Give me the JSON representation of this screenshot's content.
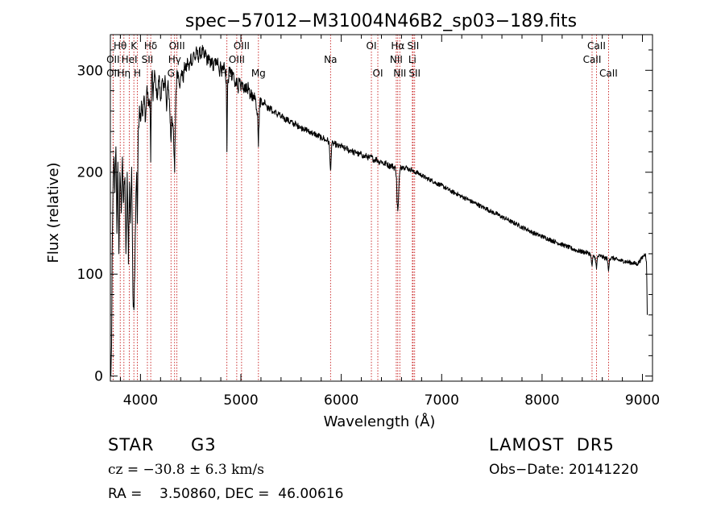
{
  "chart_data": {
    "type": "line",
    "title": "spec−57012−M31004N46B2_sp03−189.fits",
    "xlabel": "Wavelength (Å)",
    "ylabel": "Flux (relative)",
    "xlim": [
      3700,
      9100
    ],
    "ylim": [
      -5,
      335
    ],
    "xticks": [
      4000,
      5000,
      6000,
      7000,
      8000,
      9000
    ],
    "yticks": [
      0,
      100,
      200,
      300
    ],
    "grid": false,
    "line_color": "#000000",
    "marker_color": "#c00000",
    "lines": [
      {
        "label": "Hθ",
        "wave": 3798,
        "row": 0
      },
      {
        "label": "OII",
        "wave": 3727,
        "row": 1
      },
      {
        "label": "OII",
        "wave": 3727,
        "row": 2
      },
      {
        "label": "K",
        "wave": 3934,
        "row": 0
      },
      {
        "label": "HeI",
        "wave": 3889,
        "row": 1
      },
      {
        "label": "Hη",
        "wave": 3835,
        "row": 2
      },
      {
        "label": "Hδ",
        "wave": 4102,
        "row": 0
      },
      {
        "label": "SII",
        "wave": 4069,
        "row": 1
      },
      {
        "label": "H",
        "wave": 3969,
        "row": 2
      },
      {
        "label": "OIII",
        "wave": 4363,
        "row": 0
      },
      {
        "label": "Hγ",
        "wave": 4340,
        "row": 1
      },
      {
        "label": "G",
        "wave": 4304,
        "row": 2
      },
      {
        "label": "OIII",
        "wave": 5007,
        "row": 0
      },
      {
        "label": "OIII",
        "wave": 4959,
        "row": 1
      },
      {
        "label": "Hβ",
        "wave": 4861,
        "row": 2
      },
      {
        "label": "Mg",
        "wave": 5175,
        "row": 2
      },
      {
        "label": "Na",
        "wave": 5893,
        "row": 1
      },
      {
        "label": "OI",
        "wave": 6300,
        "row": 0
      },
      {
        "label": "OI",
        "wave": 6364,
        "row": 2
      },
      {
        "label": "Hα",
        "wave": 6563,
        "row": 0
      },
      {
        "label": "NII",
        "wave": 6548,
        "row": 1
      },
      {
        "label": "NII",
        "wave": 6583,
        "row": 2
      },
      {
        "label": "SII",
        "wave": 6716,
        "row": 0
      },
      {
        "label": "Li",
        "wave": 6708,
        "row": 1
      },
      {
        "label": "SII",
        "wave": 6731,
        "row": 2
      },
      {
        "label": "CaII",
        "wave": 8542,
        "row": 0
      },
      {
        "label": "CaII",
        "wave": 8498,
        "row": 1
      },
      {
        "label": "CaII",
        "wave": 8662,
        "row": 2
      }
    ],
    "spectrum": [
      [
        3705,
        0
      ],
      [
        3712,
        30
      ],
      [
        3718,
        120
      ],
      [
        3725,
        170
      ],
      [
        3735,
        215
      ],
      [
        3745,
        180
      ],
      [
        3755,
        225
      ],
      [
        3765,
        140
      ],
      [
        3775,
        210
      ],
      [
        3785,
        120
      ],
      [
        3795,
        200
      ],
      [
        3808,
        160
      ],
      [
        3820,
        215
      ],
      [
        3830,
        170
      ],
      [
        3845,
        195
      ],
      [
        3855,
        120
      ],
      [
        3868,
        200
      ],
      [
        3880,
        110
      ],
      [
        3890,
        190
      ],
      [
        3900,
        150
      ],
      [
        3912,
        205
      ],
      [
        3925,
        80
      ],
      [
        3934,
        65
      ],
      [
        3945,
        110
      ],
      [
        3955,
        180
      ],
      [
        3962,
        200
      ],
      [
        3969,
        150
      ],
      [
        3978,
        240
      ],
      [
        3990,
        265
      ],
      [
        4000,
        250
      ],
      [
        4010,
        270
      ],
      [
        4020,
        255
      ],
      [
        4035,
        275
      ],
      [
        4050,
        250
      ],
      [
        4065,
        285
      ],
      [
        4080,
        265
      ],
      [
        4095,
        270
      ],
      [
        4102,
        210
      ],
      [
        4110,
        290
      ],
      [
        4118,
        300
      ],
      [
        4125,
        270
      ],
      [
        4140,
        300
      ],
      [
        4155,
        280
      ],
      [
        4170,
        275
      ],
      [
        4185,
        295
      ],
      [
        4200,
        270
      ],
      [
        4215,
        290
      ],
      [
        4230,
        280
      ],
      [
        4245,
        295
      ],
      [
        4260,
        260
      ],
      [
        4275,
        290
      ],
      [
        4290,
        265
      ],
      [
        4304,
        230
      ],
      [
        4312,
        255
      ],
      [
        4325,
        245
      ],
      [
        4340,
        200
      ],
      [
        4352,
        275
      ],
      [
        4365,
        300
      ],
      [
        4380,
        295
      ],
      [
        4395,
        285
      ],
      [
        4410,
        300
      ],
      [
        4425,
        290
      ],
      [
        4440,
        305
      ],
      [
        4455,
        300
      ],
      [
        4470,
        310
      ],
      [
        4485,
        300
      ],
      [
        4500,
        315
      ],
      [
        4515,
        305
      ],
      [
        4530,
        318
      ],
      [
        4545,
        310
      ],
      [
        4560,
        320
      ],
      [
        4575,
        312
      ],
      [
        4590,
        318
      ],
      [
        4605,
        315
      ],
      [
        4620,
        320
      ],
      [
        4635,
        312
      ],
      [
        4650,
        318
      ],
      [
        4665,
        308
      ],
      [
        4680,
        315
      ],
      [
        4695,
        303
      ],
      [
        4710,
        312
      ],
      [
        4725,
        300
      ],
      [
        4740,
        310
      ],
      [
        4755,
        306
      ],
      [
        4770,
        312
      ],
      [
        4785,
        298
      ],
      [
        4800,
        305
      ],
      [
        4815,
        300
      ],
      [
        4830,
        306
      ],
      [
        4845,
        296
      ],
      [
        4855,
        290
      ],
      [
        4861,
        220
      ],
      [
        4868,
        285
      ],
      [
        4880,
        296
      ],
      [
        4895,
        302
      ],
      [
        4910,
        290
      ],
      [
        4925,
        298
      ],
      [
        4940,
        284
      ],
      [
        4955,
        292
      ],
      [
        4970,
        282
      ],
      [
        4985,
        290
      ],
      [
        5000,
        280
      ],
      [
        5015,
        288
      ],
      [
        5030,
        278
      ],
      [
        5045,
        286
      ],
      [
        5060,
        280
      ],
      [
        5075,
        284
      ],
      [
        5090,
        272
      ],
      [
        5105,
        280
      ],
      [
        5120,
        270
      ],
      [
        5135,
        278
      ],
      [
        5150,
        268
      ],
      [
        5167,
        258
      ],
      [
        5175,
        225
      ],
      [
        5185,
        265
      ],
      [
        5200,
        272
      ],
      [
        5220,
        266
      ],
      [
        5240,
        270
      ],
      [
        5260,
        264
      ],
      [
        5280,
        262
      ],
      [
        5300,
        263
      ],
      [
        5320,
        258
      ],
      [
        5340,
        260
      ],
      [
        5360,
        256
      ],
      [
        5380,
        258
      ],
      [
        5400,
        253
      ],
      [
        5420,
        255
      ],
      [
        5440,
        251
      ],
      [
        5460,
        253
      ],
      [
        5480,
        249
      ],
      [
        5500,
        250
      ],
      [
        5520,
        247
      ],
      [
        5540,
        248
      ],
      [
        5560,
        245
      ],
      [
        5580,
        246
      ],
      [
        5600,
        243
      ],
      [
        5620,
        244
      ],
      [
        5640,
        241
      ],
      [
        5660,
        242
      ],
      [
        5680,
        239
      ],
      [
        5700,
        240
      ],
      [
        5720,
        237
      ],
      [
        5740,
        238
      ],
      [
        5760,
        235
      ],
      [
        5780,
        236
      ],
      [
        5800,
        233
      ],
      [
        5820,
        234
      ],
      [
        5840,
        231
      ],
      [
        5860,
        232
      ],
      [
        5880,
        228
      ],
      [
        5889,
        208
      ],
      [
        5893,
        202
      ],
      [
        5898,
        210
      ],
      [
        5905,
        228
      ],
      [
        5930,
        228
      ],
      [
        5950,
        227
      ],
      [
        5975,
        225
      ],
      [
        6000,
        226
      ],
      [
        6025,
        223
      ],
      [
        6050,
        224
      ],
      [
        6075,
        221
      ],
      [
        6100,
        222
      ],
      [
        6125,
        219
      ],
      [
        6150,
        220
      ],
      [
        6175,
        217
      ],
      [
        6200,
        218
      ],
      [
        6225,
        215
      ],
      [
        6250,
        216
      ],
      [
        6275,
        214
      ],
      [
        6300,
        215
      ],
      [
        6325,
        212
      ],
      [
        6350,
        213
      ],
      [
        6375,
        210
      ],
      [
        6400,
        211
      ],
      [
        6425,
        208
      ],
      [
        6450,
        209
      ],
      [
        6475,
        206
      ],
      [
        6500,
        207
      ],
      [
        6520,
        205
      ],
      [
        6540,
        204
      ],
      [
        6550,
        195
      ],
      [
        6556,
        170
      ],
      [
        6563,
        162
      ],
      [
        6570,
        175
      ],
      [
        6578,
        195
      ],
      [
        6590,
        204
      ],
      [
        6610,
        206
      ],
      [
        6630,
        204
      ],
      [
        6650,
        205
      ],
      [
        6680,
        202
      ],
      [
        6700,
        203
      ],
      [
        6720,
        200
      ],
      [
        6750,
        200
      ],
      [
        6800,
        197
      ],
      [
        6850,
        194
      ],
      [
        6900,
        192
      ],
      [
        6950,
        189
      ],
      [
        7000,
        187
      ],
      [
        7050,
        184
      ],
      [
        7100,
        181
      ],
      [
        7150,
        179
      ],
      [
        7200,
        176
      ],
      [
        7250,
        174
      ],
      [
        7300,
        171
      ],
      [
        7350,
        169
      ],
      [
        7400,
        166
      ],
      [
        7450,
        164
      ],
      [
        7500,
        161
      ],
      [
        7550,
        159
      ],
      [
        7600,
        156
      ],
      [
        7650,
        154
      ],
      [
        7700,
        151
      ],
      [
        7750,
        149
      ],
      [
        7800,
        146
      ],
      [
        7850,
        144
      ],
      [
        7900,
        141
      ],
      [
        7950,
        139
      ],
      [
        8000,
        137
      ],
      [
        8050,
        135
      ],
      [
        8100,
        133
      ],
      [
        8150,
        131
      ],
      [
        8200,
        129
      ],
      [
        8250,
        127
      ],
      [
        8300,
        125
      ],
      [
        8350,
        123
      ],
      [
        8400,
        122
      ],
      [
        8450,
        121
      ],
      [
        8480,
        120
      ],
      [
        8498,
        108
      ],
      [
        8510,
        118
      ],
      [
        8530,
        116
      ],
      [
        8542,
        105
      ],
      [
        8552,
        117
      ],
      [
        8580,
        118
      ],
      [
        8620,
        116
      ],
      [
        8650,
        115
      ],
      [
        8662,
        103
      ],
      [
        8672,
        115
      ],
      [
        8700,
        116
      ],
      [
        8750,
        114
      ],
      [
        8800,
        113
      ],
      [
        8850,
        112
      ],
      [
        8900,
        111
      ],
      [
        8950,
        110
      ],
      [
        8990,
        115
      ],
      [
        9010,
        118
      ],
      [
        9030,
        120
      ],
      [
        9040,
        112
      ],
      [
        9048,
        60
      ]
    ]
  },
  "annotations": {
    "object_class": "STAR",
    "subclass": "G3",
    "survey": "LAMOST  DR5",
    "cz": "cz = −30.8 ± 6.3 km/s",
    "obs_date": "Obs−Date: 20141220",
    "coords": "RA =    3.50860, DEC =  46.00616"
  }
}
